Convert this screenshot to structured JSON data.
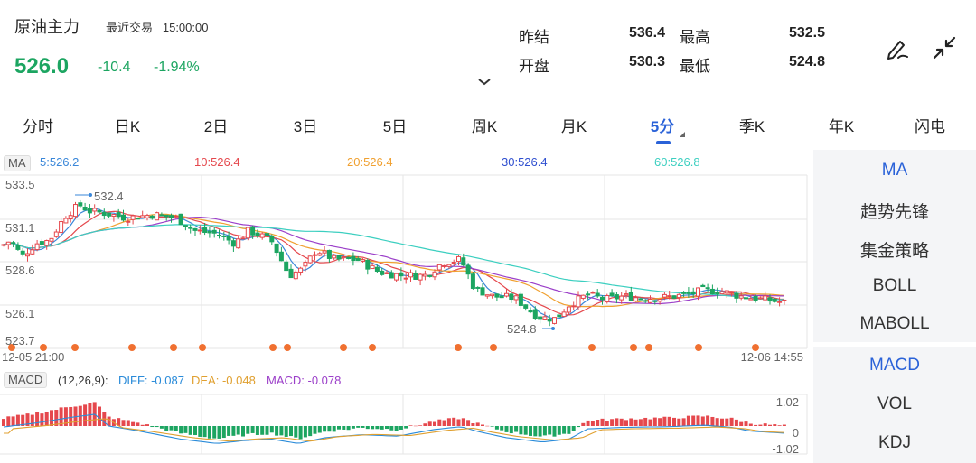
{
  "header": {
    "name": "原油主力",
    "trade_label": "最近交易",
    "trade_time": "15:00:00",
    "price": "526.0",
    "change": "-10.4",
    "change_pct": "-1.94%",
    "quotes": [
      {
        "label": "昨结",
        "value": "536.4"
      },
      {
        "label": "最高",
        "value": "532.5"
      },
      {
        "label": "开盘",
        "value": "530.3"
      },
      {
        "label": "最低",
        "value": "524.8"
      }
    ],
    "icons": [
      "draw-icon",
      "shrink-icon"
    ],
    "down_color": "#1ca561"
  },
  "tabs": [
    "分时",
    "日K",
    "2日",
    "3日",
    "5日",
    "周K",
    "月K",
    "5分",
    "季K",
    "年K",
    "闪电"
  ],
  "active_tab": "5分",
  "ma_legend": {
    "tag": "MA",
    "items": [
      {
        "label": "5:526.2",
        "color": "#3a87d9"
      },
      {
        "label": "10:526.4",
        "color": "#e5484d"
      },
      {
        "label": "20:526.4",
        "color": "#f0a030"
      },
      {
        "label": "30:526.4",
        "color": "#2f4fd0"
      },
      {
        "label": "60:526.8",
        "color": "#3ccfc0"
      }
    ]
  },
  "macd_legend": {
    "tag": "MACD",
    "params": "(12,26,9):",
    "diff": "DIFF: -0.087",
    "dea": "DEA: -0.048",
    "macd": "MACD: -0.078"
  },
  "right_panel": {
    "main_items": [
      "MA",
      "趋势先锋",
      "集金策略",
      "BOLL",
      "MABOLL"
    ],
    "sub_items": [
      "MACD",
      "VOL",
      "KDJ"
    ],
    "active_main": "MA",
    "active_sub": "MACD"
  },
  "chart_data": {
    "type": "candlestick",
    "price_axis_labels": [
      "533.5",
      "531.1",
      "528.6",
      "526.1",
      "523.7"
    ],
    "ylim": [
      523.7,
      533.5
    ],
    "time_start": "12-05 21:00",
    "time_end": "12-06 14:55",
    "max_label": "532.4",
    "min_label": "524.8",
    "macd_axis_labels": [
      "1.02",
      "0",
      "-1.02"
    ],
    "macd_ylim": [
      -1.02,
      1.02
    ],
    "up_color": "#e5484d",
    "down_color": "#1ca561",
    "signal_dot_color": "#f07030"
  }
}
